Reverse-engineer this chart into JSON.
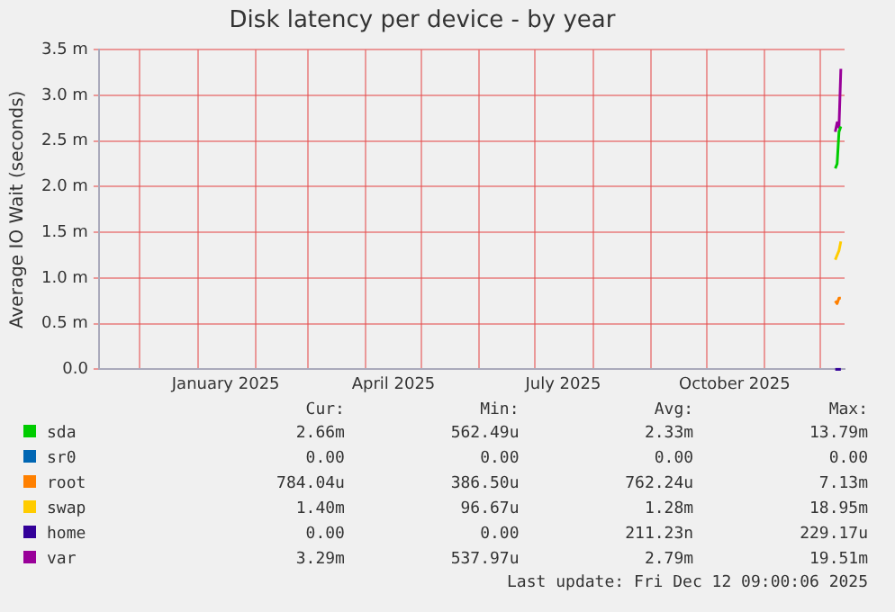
{
  "chart_data": {
    "type": "line",
    "title": "Disk latency per device - by year",
    "ylabel": "Average IO Wait (seconds)",
    "x": [
      "2025-12-09",
      "2025-12-10",
      "2025-12-11",
      "2025-12-12"
    ],
    "series": [
      {
        "name": "sda",
        "color": "#00cc00",
        "values": [
          2.2,
          2.25,
          2.6,
          2.66
        ]
      },
      {
        "name": "sr0",
        "color": "#0066b3",
        "values": [
          null,
          null,
          null,
          null
        ]
      },
      {
        "name": "root",
        "color": "#ff8000",
        "values": [
          0.75,
          0.72,
          0.78,
          0.78
        ]
      },
      {
        "name": "swap",
        "color": "#ffcc00",
        "values": [
          1.2,
          1.25,
          1.3,
          1.4
        ]
      },
      {
        "name": "home",
        "color": "#330099",
        "values": [
          0,
          0,
          0,
          0
        ]
      },
      {
        "name": "var",
        "color": "#990099",
        "values": [
          2.6,
          2.7,
          2.65,
          3.29
        ]
      }
    ],
    "xlim": [
      "2024-11-09",
      "2025-12-14"
    ],
    "xticks": [
      {
        "value": "2024-12-01",
        "label": null
      },
      {
        "value": "2025-01-01",
        "label": null
      },
      {
        "value": "2025-01-16",
        "label": "January 2025"
      },
      {
        "value": "2025-02-01",
        "label": null
      },
      {
        "value": "2025-03-01",
        "label": null
      },
      {
        "value": "2025-04-01",
        "label": null
      },
      {
        "value": "2025-04-16",
        "label": "April 2025"
      },
      {
        "value": "2025-05-01",
        "label": null
      },
      {
        "value": "2025-06-01",
        "label": null
      },
      {
        "value": "2025-07-01",
        "label": null
      },
      {
        "value": "2025-07-16",
        "label": "July 2025"
      },
      {
        "value": "2025-08-01",
        "label": null
      },
      {
        "value": "2025-09-01",
        "label": null
      },
      {
        "value": "2025-10-01",
        "label": null
      },
      {
        "value": "2025-10-16",
        "label": "October 2025"
      },
      {
        "value": "2025-11-01",
        "label": null
      },
      {
        "value": "2025-12-01",
        "label": null
      }
    ],
    "ylim": [
      0,
      3.5
    ],
    "yticks": [
      {
        "value": 0,
        "label": "0.0"
      },
      {
        "value": 0.5,
        "label": "0.5 m"
      },
      {
        "value": 1,
        "label": "1.0 m"
      },
      {
        "value": 1.5,
        "label": "1.5 m"
      },
      {
        "value": 2,
        "label": "2.0 m"
      },
      {
        "value": 2.5,
        "label": "2.5 m"
      },
      {
        "value": 3,
        "label": "3.0 m"
      },
      {
        "value": 3.5,
        "label": "3.5 m"
      }
    ],
    "grid": true,
    "legend": "bottom",
    "marker": "none",
    "line_style": "solid",
    "annotations": [
      "Cur:",
      "Min:",
      "Avg:",
      "Max:",
      "2.66m",
      "562.49u",
      "2.33m",
      "13.79m",
      "0.00",
      "0.00",
      "0.00",
      "0.00",
      "784.04u",
      "386.50u",
      "762.24u",
      "7.13m",
      "1.40m",
      "96.67u",
      "1.28m",
      "18.95m",
      "0.00",
      "0.00",
      "211.23n",
      "229.17u",
      "3.29m",
      "537.97u",
      "2.79m",
      "19.51m",
      "Last update: Fri Dec 12 09:00:06 2025"
    ]
  }
}
